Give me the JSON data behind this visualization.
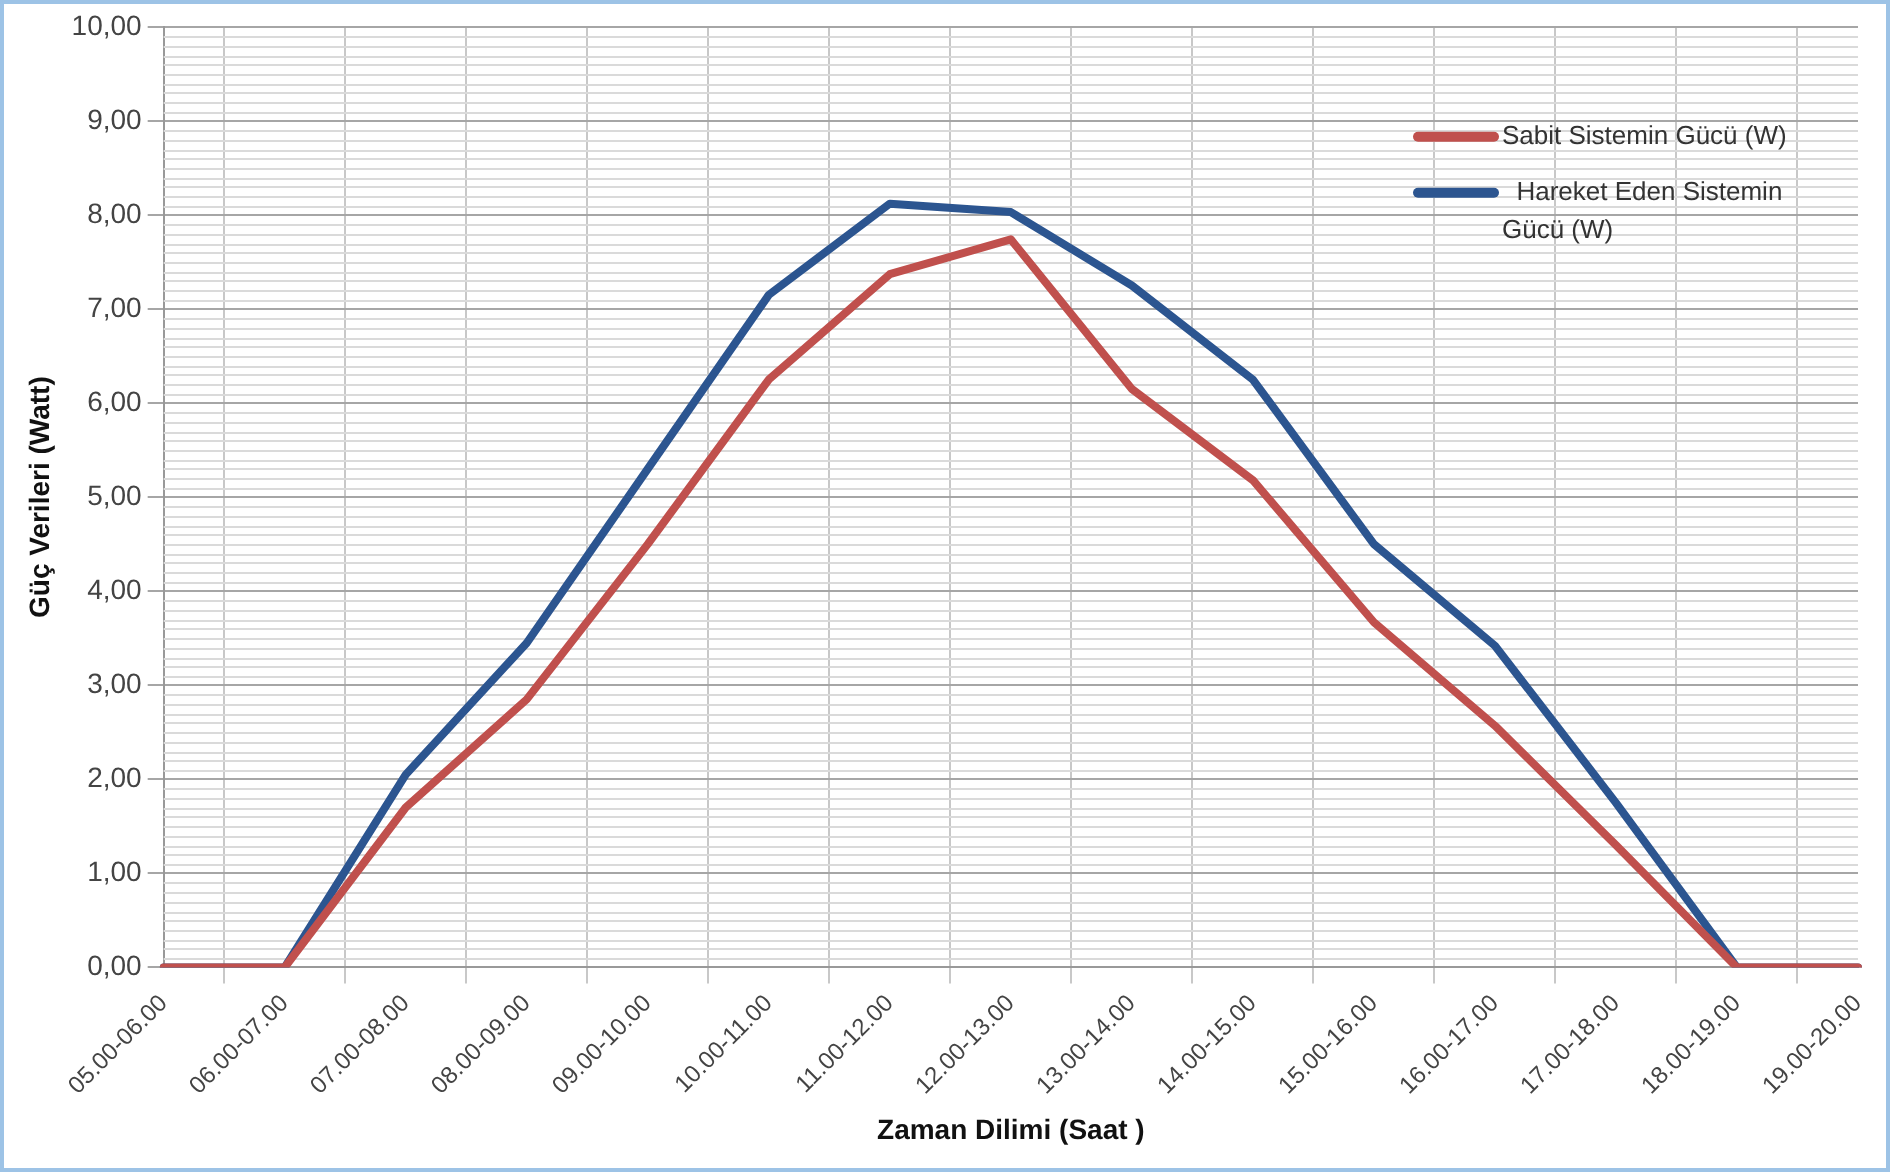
{
  "chart_data": {
    "type": "line",
    "xlabel": "Zaman Dilimi (Saat )",
    "ylabel": "Güç Verileri (Watt)",
    "categories": [
      "05.00-06.00",
      "06.00-07.00",
      "07.00-08.00",
      "08.00-09.00",
      "09.00-10.00",
      "10.00-11.00",
      "11.00-12.00",
      "12.00-13.00",
      "13.00-14.00",
      "14.00-15.00",
      "15.00-16.00",
      "16.00-17.00",
      "17.00-18.00",
      "18.00-19.00",
      "19.00-20.00"
    ],
    "series": [
      {
        "name": "Sabit Sistemin Gücü (W)",
        "color": "#c0504d",
        "values": [
          0,
          0,
          1.7,
          2.85,
          4.5,
          6.25,
          7.37,
          7.74,
          6.15,
          5.18,
          3.67,
          2.57,
          1.3,
          0,
          0
        ]
      },
      {
        "name": " Hareket Eden Sistemin Gücü (W)",
        "color": "#2c5590",
        "values": [
          0,
          0,
          2.05,
          3.45,
          5.3,
          7.15,
          8.12,
          8.03,
          7.25,
          6.25,
          4.5,
          3.42,
          1.75,
          0,
          0
        ]
      }
    ],
    "ylim": [
      0,
      10
    ],
    "yticks": [
      {
        "value": 0,
        "label": "0,00"
      },
      {
        "value": 1,
        "label": "1,00"
      },
      {
        "value": 2,
        "label": "2,00"
      },
      {
        "value": 3,
        "label": "3,00"
      },
      {
        "value": 4,
        "label": "4,00"
      },
      {
        "value": 5,
        "label": "5,00"
      },
      {
        "value": 6,
        "label": "6,00"
      },
      {
        "value": 7,
        "label": "7,00"
      },
      {
        "value": 8,
        "label": "8,00"
      },
      {
        "value": 9,
        "label": "9,00"
      },
      {
        "value": 10,
        "label": "10,00"
      }
    ],
    "grid": true,
    "legend": "top right",
    "marker": "none",
    "line_style": "solid"
  }
}
